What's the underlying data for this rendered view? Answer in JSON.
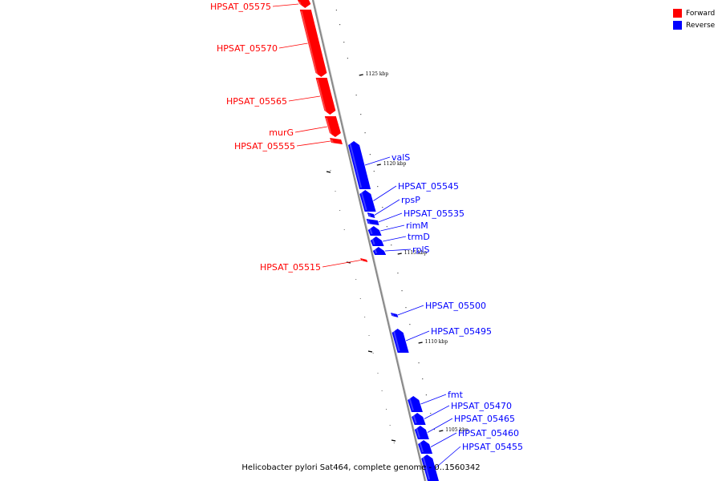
{
  "legend": {
    "items": [
      {
        "label": "Forward",
        "color": "#ff0000"
      },
      {
        "label": "Reverse",
        "color": "#0000ff"
      }
    ]
  },
  "caption": "Helicobacter pylori Sat464, complete genome - 0..1560342",
  "colors": {
    "forward": "#ff0000",
    "reverse": "#0000ff",
    "backbone": "#888888"
  },
  "ticks": [
    "1125 kbp",
    "1120 kbp",
    "1115 kbp",
    "1110 kbp",
    "1105 kbp"
  ],
  "genes": [
    {
      "label": "HPSAT_05575",
      "strand": "forward"
    },
    {
      "label": "HPSAT_05570",
      "strand": "forward"
    },
    {
      "label": "HPSAT_05565",
      "strand": "forward"
    },
    {
      "label": "murG",
      "strand": "forward"
    },
    {
      "label": "HPSAT_05555",
      "strand": "forward"
    },
    {
      "label": "valS",
      "strand": "reverse"
    },
    {
      "label": "HPSAT_05545",
      "strand": "reverse"
    },
    {
      "label": "rpsP",
      "strand": "reverse"
    },
    {
      "label": "HPSAT_05535",
      "strand": "reverse"
    },
    {
      "label": "rimM",
      "strand": "reverse"
    },
    {
      "label": "trmD",
      "strand": "reverse"
    },
    {
      "label": "rplS",
      "strand": "reverse"
    },
    {
      "label": "HPSAT_05515",
      "strand": "forward"
    },
    {
      "label": "HPSAT_05500",
      "strand": "reverse"
    },
    {
      "label": "HPSAT_05495",
      "strand": "reverse"
    },
    {
      "label": "fmt",
      "strand": "reverse"
    },
    {
      "label": "HPSAT_05470",
      "strand": "reverse"
    },
    {
      "label": "HPSAT_05465",
      "strand": "reverse"
    },
    {
      "label": "HPSAT_05460",
      "strand": "reverse"
    },
    {
      "label": "HPSAT_05455",
      "strand": "reverse"
    }
  ]
}
